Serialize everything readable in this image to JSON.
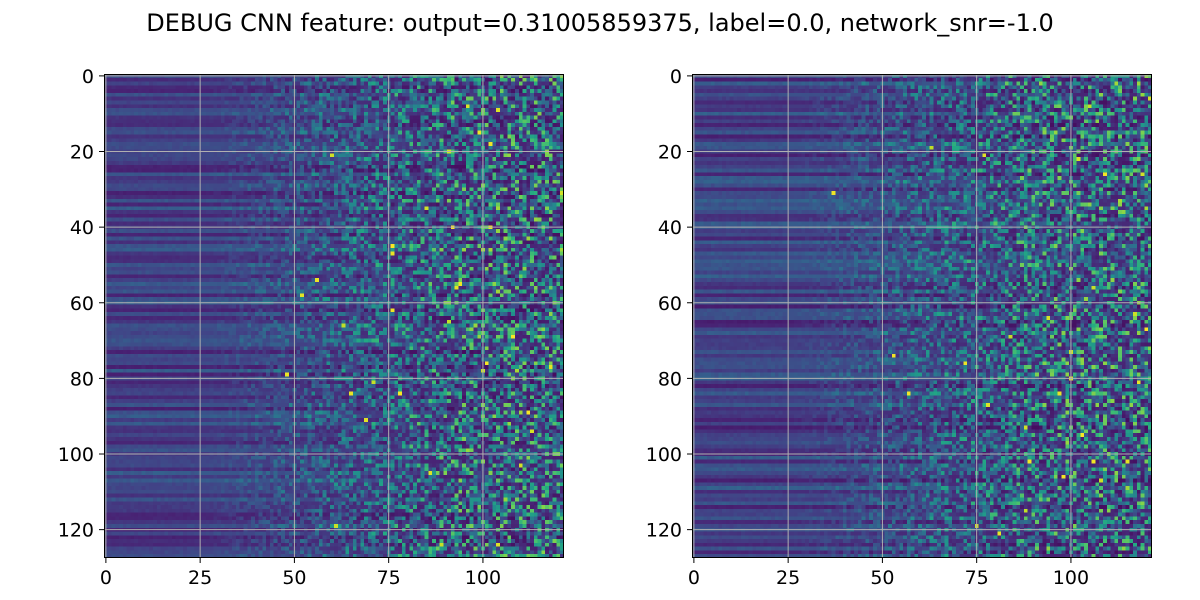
{
  "title": "DEBUG CNN feature: output=0.31005859375, label=0.0, network_snr=-1.0",
  "chart_data": [
    {
      "type": "heatmap",
      "panel": "left",
      "colormap": "viridis",
      "rows": 128,
      "cols": 122,
      "xlim": [
        -0.5,
        121.5
      ],
      "ylim": [
        127.5,
        -0.5
      ],
      "x_ticks": [
        0,
        25,
        50,
        75,
        100
      ],
      "y_ticks": [
        0,
        20,
        40,
        60,
        80,
        100,
        120
      ],
      "grid": true,
      "seed": 17
    },
    {
      "type": "heatmap",
      "panel": "right",
      "colormap": "viridis",
      "rows": 128,
      "cols": 122,
      "xlim": [
        -0.5,
        121.5
      ],
      "ylim": [
        127.5,
        -0.5
      ],
      "x_ticks": [
        0,
        25,
        50,
        75,
        100
      ],
      "y_ticks": [
        0,
        20,
        40,
        60,
        80,
        100,
        120
      ],
      "grid": true,
      "seed": 91
    }
  ]
}
